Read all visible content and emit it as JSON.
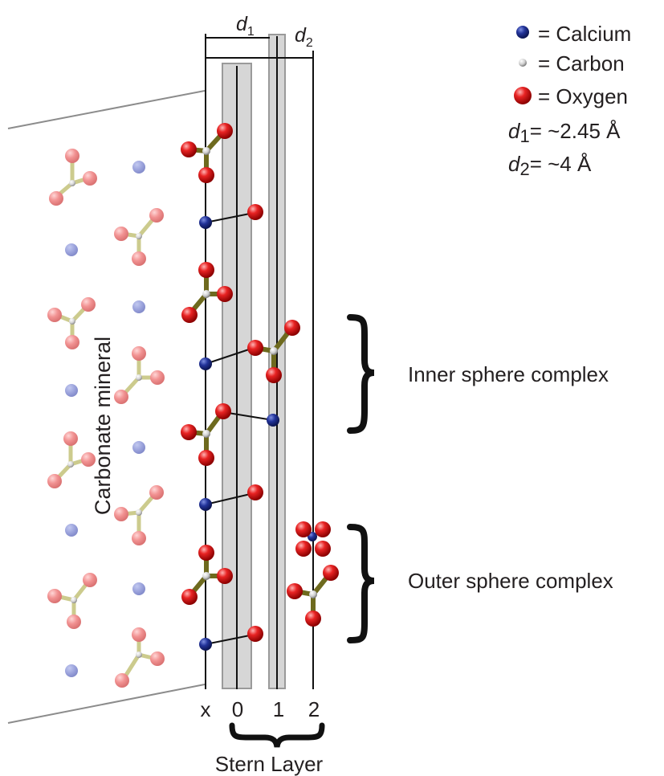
{
  "legend": {
    "calcium": "= Calcium",
    "carbon": "= Carbon",
    "oxygen": "= Oxygen",
    "d1_value": "= ~2.45 Å",
    "d2_value": "= ~4 Å"
  },
  "labels": {
    "d": "d",
    "d1_sub": "1",
    "d2_sub": "2",
    "mineral": "Carbonate mineral",
    "inner": "Inner sphere complex",
    "outer": "Outer sphere complex",
    "plane_x": "x",
    "plane_0": "0",
    "plane_1": "1",
    "plane_2": "2",
    "stern": "Stern Layer"
  },
  "colors": {
    "calcium": "#1f2f8f",
    "carbon": "#c8c8c8",
    "oxygen": "#d61a1a",
    "bond": "#6e6a1e",
    "plane_fill": "#d6d6d6"
  }
}
